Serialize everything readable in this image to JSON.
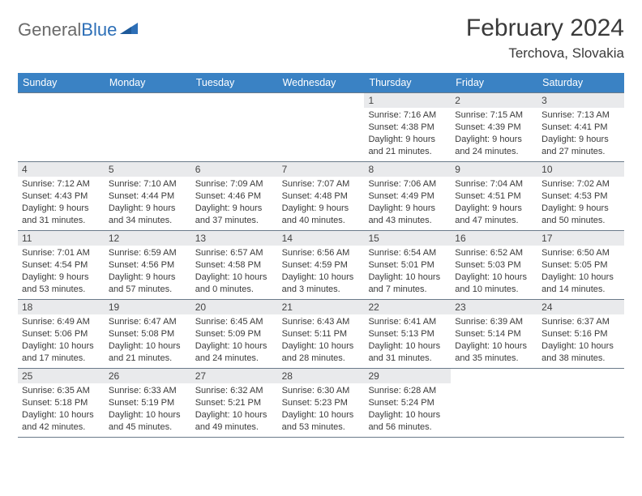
{
  "logo": {
    "text1": "General",
    "text2": "Blue"
  },
  "title": "February 2024",
  "subtitle": "Terchova, Slovakia",
  "colors": {
    "header_bg": "#3a82c4",
    "header_text": "#ffffff",
    "date_bar_bg": "#e9eaec",
    "grid_border": "#6a7a8a",
    "logo_gray": "#6a6a6a",
    "logo_blue": "#2d6fb7",
    "text": "#3a3a3a"
  },
  "day_names": [
    "Sunday",
    "Monday",
    "Tuesday",
    "Wednesday",
    "Thursday",
    "Friday",
    "Saturday"
  ],
  "weeks": [
    [
      null,
      null,
      null,
      null,
      {
        "d": "1",
        "sr": "7:16 AM",
        "ss": "4:38 PM",
        "dl": "9 hours and 21 minutes."
      },
      {
        "d": "2",
        "sr": "7:15 AM",
        "ss": "4:39 PM",
        "dl": "9 hours and 24 minutes."
      },
      {
        "d": "3",
        "sr": "7:13 AM",
        "ss": "4:41 PM",
        "dl": "9 hours and 27 minutes."
      }
    ],
    [
      {
        "d": "4",
        "sr": "7:12 AM",
        "ss": "4:43 PM",
        "dl": "9 hours and 31 minutes."
      },
      {
        "d": "5",
        "sr": "7:10 AM",
        "ss": "4:44 PM",
        "dl": "9 hours and 34 minutes."
      },
      {
        "d": "6",
        "sr": "7:09 AM",
        "ss": "4:46 PM",
        "dl": "9 hours and 37 minutes."
      },
      {
        "d": "7",
        "sr": "7:07 AM",
        "ss": "4:48 PM",
        "dl": "9 hours and 40 minutes."
      },
      {
        "d": "8",
        "sr": "7:06 AM",
        "ss": "4:49 PM",
        "dl": "9 hours and 43 minutes."
      },
      {
        "d": "9",
        "sr": "7:04 AM",
        "ss": "4:51 PM",
        "dl": "9 hours and 47 minutes."
      },
      {
        "d": "10",
        "sr": "7:02 AM",
        "ss": "4:53 PM",
        "dl": "9 hours and 50 minutes."
      }
    ],
    [
      {
        "d": "11",
        "sr": "7:01 AM",
        "ss": "4:54 PM",
        "dl": "9 hours and 53 minutes."
      },
      {
        "d": "12",
        "sr": "6:59 AM",
        "ss": "4:56 PM",
        "dl": "9 hours and 57 minutes."
      },
      {
        "d": "13",
        "sr": "6:57 AM",
        "ss": "4:58 PM",
        "dl": "10 hours and 0 minutes."
      },
      {
        "d": "14",
        "sr": "6:56 AM",
        "ss": "4:59 PM",
        "dl": "10 hours and 3 minutes."
      },
      {
        "d": "15",
        "sr": "6:54 AM",
        "ss": "5:01 PM",
        "dl": "10 hours and 7 minutes."
      },
      {
        "d": "16",
        "sr": "6:52 AM",
        "ss": "5:03 PM",
        "dl": "10 hours and 10 minutes."
      },
      {
        "d": "17",
        "sr": "6:50 AM",
        "ss": "5:05 PM",
        "dl": "10 hours and 14 minutes."
      }
    ],
    [
      {
        "d": "18",
        "sr": "6:49 AM",
        "ss": "5:06 PM",
        "dl": "10 hours and 17 minutes."
      },
      {
        "d": "19",
        "sr": "6:47 AM",
        "ss": "5:08 PM",
        "dl": "10 hours and 21 minutes."
      },
      {
        "d": "20",
        "sr": "6:45 AM",
        "ss": "5:09 PM",
        "dl": "10 hours and 24 minutes."
      },
      {
        "d": "21",
        "sr": "6:43 AM",
        "ss": "5:11 PM",
        "dl": "10 hours and 28 minutes."
      },
      {
        "d": "22",
        "sr": "6:41 AM",
        "ss": "5:13 PM",
        "dl": "10 hours and 31 minutes."
      },
      {
        "d": "23",
        "sr": "6:39 AM",
        "ss": "5:14 PM",
        "dl": "10 hours and 35 minutes."
      },
      {
        "d": "24",
        "sr": "6:37 AM",
        "ss": "5:16 PM",
        "dl": "10 hours and 38 minutes."
      }
    ],
    [
      {
        "d": "25",
        "sr": "6:35 AM",
        "ss": "5:18 PM",
        "dl": "10 hours and 42 minutes."
      },
      {
        "d": "26",
        "sr": "6:33 AM",
        "ss": "5:19 PM",
        "dl": "10 hours and 45 minutes."
      },
      {
        "d": "27",
        "sr": "6:32 AM",
        "ss": "5:21 PM",
        "dl": "10 hours and 49 minutes."
      },
      {
        "d": "28",
        "sr": "6:30 AM",
        "ss": "5:23 PM",
        "dl": "10 hours and 53 minutes."
      },
      {
        "d": "29",
        "sr": "6:28 AM",
        "ss": "5:24 PM",
        "dl": "10 hours and 56 minutes."
      },
      null,
      null
    ]
  ],
  "labels": {
    "sunrise": "Sunrise:",
    "sunset": "Sunset:",
    "daylight": "Daylight:"
  }
}
